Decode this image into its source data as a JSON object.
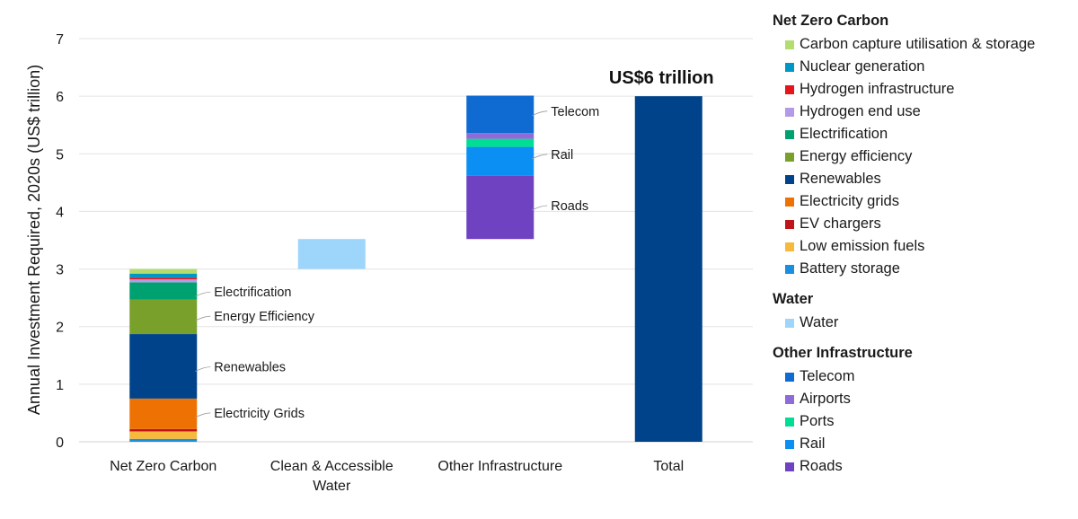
{
  "chart_data": {
    "type": "bar",
    "subtype": "waterfall-stacked",
    "ylabel": "Annual Investment Required, 2020s (US$ trillion)",
    "ylim": [
      0,
      7
    ],
    "yticks": [
      0,
      1,
      2,
      3,
      4,
      5,
      6,
      7
    ],
    "grid": true,
    "legend_position": "right",
    "categories": [
      "Net Zero Carbon",
      "Clean & Accessible Water",
      "Other Infrastructure",
      "Total"
    ],
    "stacks": [
      {
        "category": "Net Zero Carbon",
        "base": 0,
        "segments": [
          {
            "name": "Battery storage",
            "value": 0.05,
            "color": "#1a8fe0"
          },
          {
            "name": "Low emission fuels",
            "value": 0.13,
            "color": "#f6b93b"
          },
          {
            "name": "EV chargers",
            "value": 0.04,
            "color": "#c0141b"
          },
          {
            "name": "Electricity grids",
            "value": 0.53,
            "color": "#ee7203"
          },
          {
            "name": "Renewables",
            "value": 1.12,
            "color": "#00438a"
          },
          {
            "name": "Energy efficiency",
            "value": 0.6,
            "color": "#79a02b"
          },
          {
            "name": "Electrification",
            "value": 0.3,
            "color": "#00a170"
          },
          {
            "name": "Hydrogen end use",
            "value": 0.05,
            "color": "#b39ae8"
          },
          {
            "name": "Hydrogen infrastructure",
            "value": 0.03,
            "color": "#e8141b"
          },
          {
            "name": "Nuclear generation",
            "value": 0.07,
            "color": "#0096c6"
          },
          {
            "name": "Carbon capture utilisation & storage",
            "value": 0.08,
            "color": "#b3dd6e"
          }
        ]
      },
      {
        "category": "Clean & Accessible Water",
        "base": 3.0,
        "segments": [
          {
            "name": "Water",
            "value": 0.52,
            "color": "#9dd5fb"
          }
        ]
      },
      {
        "category": "Other Infrastructure",
        "base": 3.52,
        "segments": [
          {
            "name": "Roads",
            "value": 1.1,
            "color": "#6f42c1"
          },
          {
            "name": "Rail",
            "value": 0.5,
            "color": "#0c8ff2"
          },
          {
            "name": "Ports",
            "value": 0.14,
            "color": "#00dd95"
          },
          {
            "name": "Airports",
            "value": 0.1,
            "color": "#8e6bd6"
          },
          {
            "name": "Telecom",
            "value": 0.65,
            "color": "#0f6ad1"
          }
        ]
      },
      {
        "category": "Total",
        "base": 0,
        "segments": [
          {
            "name": "Total",
            "value": 6.0,
            "color": "#00438a"
          }
        ]
      }
    ],
    "annotations": [
      {
        "text": "Electrification",
        "category": "Net Zero Carbon",
        "y": 2.6
      },
      {
        "text": "Energy Efficiency",
        "category": "Net Zero Carbon",
        "y": 2.18
      },
      {
        "text": "Renewables",
        "category": "Net Zero Carbon",
        "y": 1.3
      },
      {
        "text": "Electricity Grids",
        "category": "Net Zero Carbon",
        "y": 0.5
      },
      {
        "text": "Telecom",
        "category": "Other Infrastructure",
        "y": 5.74
      },
      {
        "text": "Rail",
        "category": "Other Infrastructure",
        "y": 4.99
      },
      {
        "text": "Roads",
        "category": "Other Infrastructure",
        "y": 4.1
      }
    ],
    "total_label": "US$6 trillion",
    "legend": [
      {
        "title": "Net Zero Carbon",
        "items": [
          {
            "name": "Carbon capture utilisation & storage",
            "color": "#b3dd6e"
          },
          {
            "name": "Nuclear generation",
            "color": "#0096c6"
          },
          {
            "name": "Hydrogen infrastructure",
            "color": "#e8141b"
          },
          {
            "name": "Hydrogen end use",
            "color": "#b39ae8"
          },
          {
            "name": "Electrification",
            "color": "#00a170"
          },
          {
            "name": "Energy efficiency",
            "color": "#79a02b"
          },
          {
            "name": "Renewables",
            "color": "#00438a"
          },
          {
            "name": "Electricity grids",
            "color": "#ee7203"
          },
          {
            "name": "EV chargers",
            "color": "#c0141b"
          },
          {
            "name": "Low emission fuels",
            "color": "#f6b93b"
          },
          {
            "name": "Battery storage",
            "color": "#1a8fe0"
          }
        ]
      },
      {
        "title": "Water",
        "items": [
          {
            "name": "Water",
            "color": "#9dd5fb"
          }
        ]
      },
      {
        "title": "Other Infrastructure",
        "items": [
          {
            "name": "Telecom",
            "color": "#0f6ad1"
          },
          {
            "name": "Airports",
            "color": "#8e6bd6"
          },
          {
            "name": "Ports",
            "color": "#00dd95"
          },
          {
            "name": "Rail",
            "color": "#0c8ff2"
          },
          {
            "name": "Roads",
            "color": "#6f42c1"
          }
        ]
      }
    ]
  }
}
